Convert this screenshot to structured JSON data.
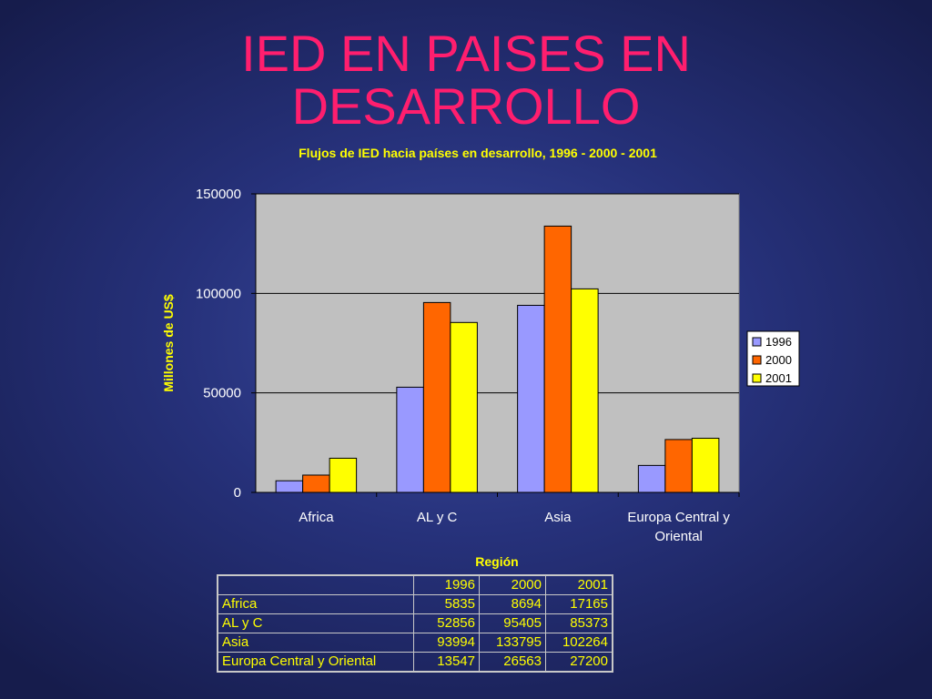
{
  "slide": {
    "title_line1": "IED EN PAISES EN",
    "title_line2": "DESARROLLO"
  },
  "chart_data": {
    "type": "bar",
    "title": "Flujos de IED hacia países en desarrollo, 1996 - 2000 - 2001",
    "xlabel": "Región",
    "ylabel": "Millones de US$",
    "categories": [
      "Africa",
      "AL y C",
      "Asia",
      "Europa Central y Oriental"
    ],
    "category_lines": [
      [
        "Africa"
      ],
      [
        "AL y C"
      ],
      [
        "Asia"
      ],
      [
        "Europa Central y",
        "Oriental"
      ]
    ],
    "series": [
      {
        "name": "1996",
        "values": [
          5835,
          52856,
          93994,
          13547
        ],
        "color": "#9999ff"
      },
      {
        "name": "2000",
        "values": [
          8694,
          95405,
          133795,
          26563
        ],
        "color": "#ff6600"
      },
      {
        "name": "2001",
        "values": [
          17165,
          85373,
          102264,
          27200
        ],
        "color": "#ffff00"
      }
    ],
    "ylim": [
      0,
      150000
    ],
    "yticks": [
      0,
      50000,
      100000,
      150000
    ],
    "ytick_labels": [
      "0",
      "50000",
      "100000",
      "150000"
    ],
    "grid": true,
    "plot_background": "#c0c0c0",
    "legend_position": "right",
    "table": {
      "header": [
        "",
        "1996",
        "2000",
        "2001"
      ],
      "rows": [
        {
          "region": "Africa",
          "v1996": "5835",
          "v2000": "8694",
          "v2001": "17165"
        },
        {
          "region": "AL y C",
          "v1996": "52856",
          "v2000": "95405",
          "v2001": "85373"
        },
        {
          "region": "Asia",
          "v1996": "93994",
          "v2000": "133795",
          "v2001": "102264"
        },
        {
          "region": "Europa Central y Oriental",
          "v1996": "13547",
          "v2000": "26563",
          "v2001": "27200"
        }
      ]
    }
  }
}
